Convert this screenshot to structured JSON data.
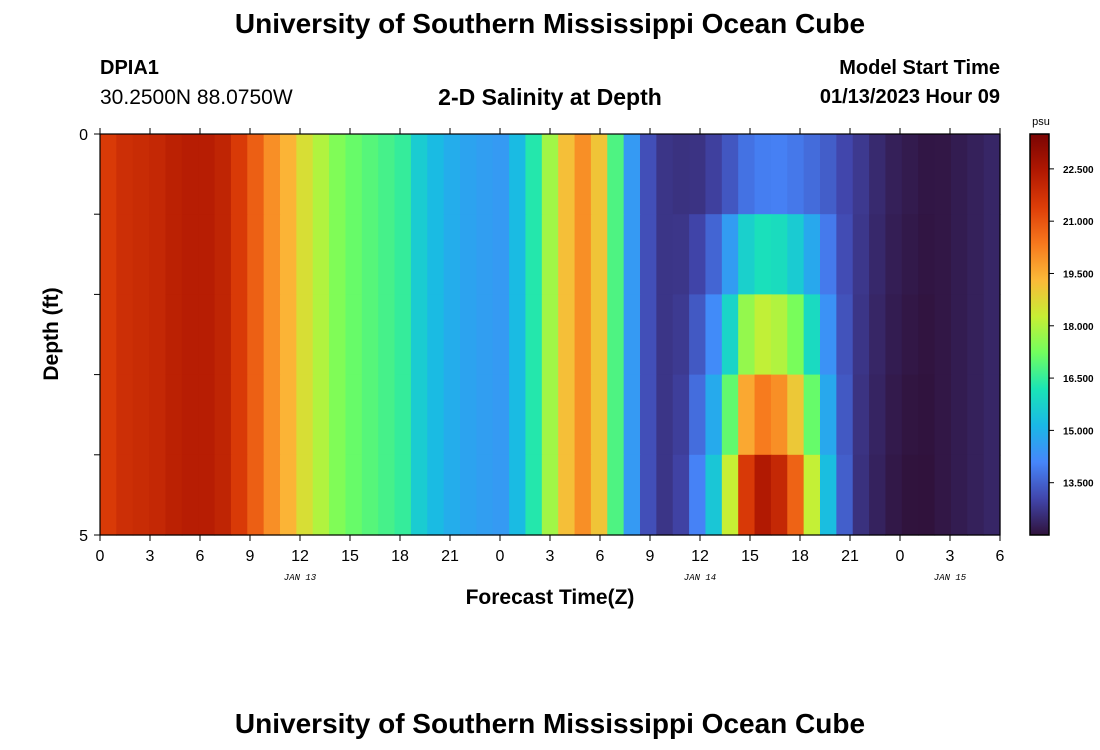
{
  "header": {
    "title": "University of Southern Mississippi Ocean Cube",
    "station_id": "DPIA1",
    "station_coords": "30.2500N  88.0750W",
    "chart_title": "2-D Salinity at Depth",
    "model_start_label": "Model Start Time",
    "model_start_value": "01/13/2023 Hour 09"
  },
  "footer": {
    "title": "University of Southern Mississippi Ocean Cube"
  },
  "chart_data": {
    "type": "heatmap",
    "title": "2-D Salinity at Depth",
    "xlabel": "Forecast Time(Z)",
    "ylabel": "Depth (ft)",
    "colorbar_unit": "psu",
    "colorbar_ticks": [
      "22.500",
      "21.000",
      "19.500",
      "18.000",
      "16.500",
      "15.000",
      "13.500"
    ],
    "colorbar_tick_values": [
      22.5,
      21.0,
      19.5,
      18.0,
      16.5,
      15.0,
      13.5
    ],
    "color_range": [
      12.0,
      23.5
    ],
    "color_stops": [
      "#30123b",
      "#4146ac",
      "#4686fb",
      "#1ab8e6",
      "#1ae4b6",
      "#72fe5e",
      "#c7ef34",
      "#fbb938",
      "#f7781d",
      "#dd3d08",
      "#b01802",
      "#7a0403"
    ],
    "x_tick_labels": [
      "0",
      "3",
      "6",
      "9",
      "12",
      "15",
      "18",
      "21",
      "0",
      "3",
      "6",
      "9",
      "12",
      "15",
      "18",
      "21",
      "0",
      "3",
      "6"
    ],
    "x_tick_hours": [
      0,
      3,
      6,
      9,
      12,
      15,
      18,
      21,
      24,
      27,
      30,
      33,
      36,
      39,
      42,
      45,
      48,
      51,
      54
    ],
    "x_range_hours": [
      0,
      54
    ],
    "date_labels": [
      {
        "text": "JAN 13",
        "hour": 12
      },
      {
        "text": "JAN 14",
        "hour": 36
      },
      {
        "text": "JAN 15",
        "hour": 51
      }
    ],
    "y_tick_labels": [
      "0",
      "5"
    ],
    "y_range": [
      0,
      5
    ],
    "depth_levels": [
      0,
      1,
      2,
      3,
      4,
      5
    ],
    "surface_salinity": [
      21.5,
      21.8,
      21.9,
      22.0,
      22.2,
      22.3,
      22.3,
      22.1,
      21.5,
      20.8,
      20.0,
      19.4,
      18.6,
      18.0,
      17.4,
      17.1,
      16.9,
      16.7,
      16.5,
      15.6,
      15.2,
      14.9,
      14.7,
      14.6,
      14.5,
      15.2,
      16.3,
      17.8,
      19.2,
      20.0,
      19.1,
      16.8,
      14.5,
      13.2,
      12.7,
      12.6,
      12.5,
      12.6,
      12.7,
      12.8,
      12.9,
      13.0,
      13.0,
      13.1,
      13.2,
      13.0,
      12.8,
      12.5,
      12.3,
      12.2,
      12.1,
      12.1,
      12.2,
      12.3,
      12.4
    ],
    "bottom_salinity": [
      21.5,
      21.8,
      21.9,
      22.0,
      22.2,
      22.3,
      22.3,
      22.1,
      21.5,
      20.8,
      20.0,
      19.4,
      18.6,
      18.0,
      17.4,
      17.1,
      16.9,
      16.7,
      16.5,
      15.6,
      15.2,
      14.9,
      14.7,
      14.6,
      14.5,
      15.2,
      16.3,
      17.8,
      19.2,
      20.0,
      19.1,
      16.8,
      14.5,
      13.2,
      12.7,
      13.0,
      14.2,
      15.8,
      18.9,
      22.5,
      23.5,
      23.0,
      21.6,
      18.8,
      15.5,
      13.5,
      12.6,
      12.3,
      12.1,
      12.0,
      12.0,
      12.1,
      12.2,
      12.3,
      12.4
    ]
  }
}
